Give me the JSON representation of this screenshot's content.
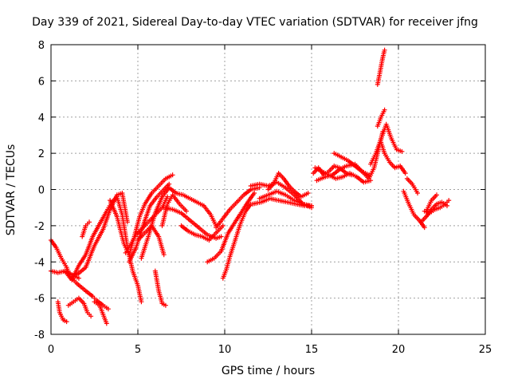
{
  "chart_data": {
    "type": "scatter",
    "title": "Day 339 of 2021, Sidereal Day-to-day VTEC variation (SDTVAR) for receiver jfng",
    "xlabel": "GPS time / hours",
    "ylabel": "SDTVAR / TECUs",
    "xlim": [
      0,
      25
    ],
    "ylim": [
      -8,
      8
    ],
    "xticks": [
      0,
      5,
      10,
      15,
      20,
      25
    ],
    "yticks": [
      -8,
      -6,
      -4,
      -2,
      0,
      2,
      4,
      6,
      8
    ],
    "xtick_labels": [
      "0",
      "5",
      "10",
      "15",
      "20",
      "25"
    ],
    "ytick_labels": [
      "-8",
      "-6",
      "-4",
      "-2",
      "0",
      "2",
      "4",
      "6",
      "8"
    ],
    "grid": true,
    "marker": "+",
    "marker_color": "#ff0000",
    "series": [
      {
        "name": "trace-1",
        "x": [
          0.0,
          0.3,
          0.6,
          0.9,
          1.1,
          1.5,
          2.0,
          2.4,
          2.6,
          3.0,
          3.3
        ],
        "y": [
          -2.8,
          -3.2,
          -3.8,
          -4.3,
          -4.8,
          -5.2,
          -5.6,
          -5.9,
          -6.1,
          -6.4,
          -6.6
        ]
      },
      {
        "name": "trace-2",
        "x": [
          0.0,
          0.4,
          0.8,
          1.2,
          1.6
        ],
        "y": [
          -4.5,
          -4.6,
          -4.5,
          -4.7,
          -4.9
        ]
      },
      {
        "name": "trace-3",
        "x": [
          0.4,
          0.5,
          0.7,
          0.9
        ],
        "y": [
          -6.2,
          -6.8,
          -7.2,
          -7.3
        ]
      },
      {
        "name": "trace-4",
        "x": [
          1.0,
          1.3,
          1.6,
          1.9,
          2.1,
          2.3
        ],
        "y": [
          -6.4,
          -6.2,
          -6.0,
          -6.3,
          -6.8,
          -7.0
        ]
      },
      {
        "name": "trace-5",
        "x": [
          2.5,
          2.8,
          3.0,
          3.2
        ],
        "y": [
          -6.2,
          -6.4,
          -6.9,
          -7.4
        ]
      },
      {
        "name": "trace-6",
        "x": [
          1.8,
          2.0,
          2.2
        ],
        "y": [
          -2.6,
          -2.0,
          -1.8
        ]
      },
      {
        "name": "trace-7",
        "x": [
          0.8,
          1.2,
          1.6,
          2.0,
          2.4,
          2.8,
          3.2,
          3.5,
          3.8,
          4.1,
          4.4,
          4.7,
          5.0,
          5.2
        ],
        "y": [
          -4.5,
          -5.0,
          -4.2,
          -3.6,
          -2.6,
          -1.9,
          -1.2,
          -0.7,
          -0.4,
          -1.4,
          -3.2,
          -4.5,
          -5.3,
          -6.2
        ]
      },
      {
        "name": "trace-8",
        "x": [
          1.5,
          2.0,
          2.5,
          3.0,
          3.4,
          3.8,
          4.1,
          4.4
        ],
        "y": [
          -4.7,
          -4.3,
          -3.1,
          -2.2,
          -1.1,
          -0.3,
          -0.2,
          -1.8
        ]
      },
      {
        "name": "trace-9",
        "x": [
          3.4,
          3.8,
          4.2,
          4.5,
          4.8,
          5.1,
          5.4,
          5.8,
          6.2,
          6.6,
          7.0
        ],
        "y": [
          -0.6,
          -1.5,
          -3.0,
          -3.6,
          -2.6,
          -1.5,
          -0.8,
          -0.2,
          0.2,
          0.6,
          0.8
        ]
      },
      {
        "name": "trace-10",
        "x": [
          4.3,
          4.6,
          4.9,
          5.2,
          5.6,
          6.0,
          6.4,
          6.7
        ],
        "y": [
          -3.5,
          -3.0,
          -2.5,
          -2.2,
          -1.8,
          -1.4,
          -1.0,
          -0.4
        ]
      },
      {
        "name": "trace-11",
        "x": [
          5.0,
          5.4,
          5.8,
          6.2,
          6.5
        ],
        "y": [
          -2.8,
          -2.4,
          -2.0,
          -2.6,
          -3.6
        ]
      },
      {
        "name": "trace-12",
        "x": [
          4.5,
          4.9,
          5.3,
          5.7,
          6.1,
          6.5,
          6.8
        ],
        "y": [
          -4.0,
          -3.2,
          -2.0,
          -0.9,
          -0.4,
          0.0,
          0.3
        ]
      },
      {
        "name": "trace-13",
        "x": [
          5.2,
          5.6,
          6.0,
          6.4,
          6.8,
          7.2,
          7.6,
          8.0,
          8.4,
          8.8,
          9.2,
          9.5
        ],
        "y": [
          -3.8,
          -2.6,
          -1.3,
          -0.4,
          0.1,
          -0.2,
          -0.3,
          -0.5,
          -0.7,
          -0.9,
          -1.4,
          -2.0
        ]
      },
      {
        "name": "trace-14",
        "x": [
          6.0,
          6.2,
          6.4,
          6.6
        ],
        "y": [
          -4.5,
          -5.6,
          -6.3,
          -6.4
        ]
      },
      {
        "name": "trace-15",
        "x": [
          6.4,
          6.7,
          7.0,
          7.4,
          7.8
        ],
        "y": [
          -2.0,
          -0.8,
          -0.3,
          -0.8,
          -1.2
        ]
      },
      {
        "name": "trace-16",
        "x": [
          6.5,
          7.0,
          7.5,
          8.0,
          8.5,
          9.0,
          9.5,
          9.8
        ],
        "y": [
          -1.0,
          -1.1,
          -1.3,
          -1.7,
          -2.1,
          -2.5,
          -2.7,
          -2.6
        ]
      },
      {
        "name": "trace-17",
        "x": [
          7.5,
          7.9,
          8.3,
          8.7,
          9.1,
          9.5,
          9.9
        ],
        "y": [
          -2.0,
          -2.3,
          -2.5,
          -2.6,
          -2.8,
          -2.4,
          -2.0
        ]
      },
      {
        "name": "trace-18",
        "x": [
          9.0,
          9.4,
          9.8,
          10.2,
          10.6,
          11.0,
          11.4,
          11.7
        ],
        "y": [
          -4.0,
          -3.8,
          -3.4,
          -2.4,
          -1.8,
          -1.2,
          -0.6,
          -0.2
        ]
      },
      {
        "name": "trace-19",
        "x": [
          9.9,
          10.1,
          10.3,
          10.6,
          10.9,
          11.2,
          11.5
        ],
        "y": [
          -4.9,
          -4.4,
          -3.7,
          -2.8,
          -1.9,
          -1.2,
          -0.8
        ]
      },
      {
        "name": "trace-20",
        "x": [
          9.5,
          9.9,
          10.3,
          10.7,
          11.1,
          11.5,
          12.0
        ],
        "y": [
          -2.1,
          -1.6,
          -1.1,
          -0.7,
          -0.3,
          0.0,
          0.1
        ]
      },
      {
        "name": "trace-21",
        "x": [
          11.5,
          12.0,
          12.5,
          13.0,
          13.5,
          14.0,
          14.5,
          15.0
        ],
        "y": [
          0.2,
          0.3,
          0.2,
          0.4,
          0.1,
          -0.3,
          -0.8,
          -0.9
        ]
      },
      {
        "name": "trace-22",
        "x": [
          12.0,
          12.5,
          13.0,
          13.5,
          14.0,
          14.5,
          15.0
        ],
        "y": [
          -0.5,
          -0.3,
          -0.1,
          -0.3,
          -0.6,
          -0.8,
          -1.0
        ]
      },
      {
        "name": "trace-23",
        "x": [
          11.6,
          12.1,
          12.6,
          13.1,
          13.6,
          14.1,
          14.6,
          15.0
        ],
        "y": [
          -0.8,
          -0.7,
          -0.5,
          -0.6,
          -0.7,
          -0.8,
          -0.9,
          -0.9
        ]
      },
      {
        "name": "trace-24",
        "x": [
          12.5,
          12.8,
          13.1,
          13.4,
          13.7,
          14.0,
          14.4,
          14.8
        ],
        "y": [
          0.0,
          0.3,
          0.9,
          0.6,
          0.2,
          -0.1,
          -0.4,
          -0.2
        ]
      },
      {
        "name": "trace-25",
        "x": [
          15.1,
          15.4,
          15.7,
          16.0,
          16.3,
          16.6,
          17.0,
          17.3
        ],
        "y": [
          0.9,
          1.2,
          0.8,
          1.0,
          1.3,
          1.2,
          0.9,
          0.8
        ]
      },
      {
        "name": "trace-26",
        "x": [
          15.2,
          15.6,
          16.0,
          16.4,
          16.8,
          17.2,
          17.6,
          18.0,
          18.4
        ],
        "y": [
          1.2,
          1.0,
          0.8,
          0.6,
          0.7,
          0.9,
          0.7,
          0.4,
          0.5
        ]
      },
      {
        "name": "trace-27",
        "x": [
          16.3,
          16.7,
          17.1,
          17.5,
          17.9,
          18.3
        ],
        "y": [
          2.0,
          1.8,
          1.6,
          1.3,
          1.0,
          0.8
        ]
      },
      {
        "name": "trace-28",
        "x": [
          15.3,
          15.8,
          16.2,
          16.6,
          17.0,
          17.5,
          17.9,
          18.3,
          18.6,
          18.9,
          19.1
        ],
        "y": [
          0.5,
          0.7,
          0.8,
          1.1,
          1.3,
          1.4,
          1.0,
          0.6,
          1.2,
          2.4,
          3.2
        ]
      },
      {
        "name": "trace-29",
        "x": [
          18.4,
          18.7,
          19.0,
          19.3,
          19.6,
          19.9,
          20.2
        ],
        "y": [
          1.4,
          2.0,
          2.8,
          3.6,
          2.8,
          2.2,
          2.1
        ]
      },
      {
        "name": "trace-30",
        "x": [
          18.8,
          19.0,
          19.2
        ],
        "y": [
          3.5,
          4.0,
          4.4
        ]
      },
      {
        "name": "trace-31",
        "x": [
          19.0,
          19.2,
          19.5,
          19.8,
          20.1,
          20.4
        ],
        "y": [
          2.6,
          2.0,
          1.5,
          1.2,
          1.3,
          0.9
        ]
      },
      {
        "name": "trace-32",
        "x": [
          18.8,
          18.9,
          19.0,
          19.1,
          19.2
        ],
        "y": [
          5.8,
          6.3,
          6.8,
          7.3,
          7.7
        ]
      },
      {
        "name": "trace-33",
        "x": [
          20.3,
          20.6,
          20.9,
          21.2,
          21.5
        ],
        "y": [
          -0.1,
          -0.8,
          -1.4,
          -1.7,
          -2.1
        ]
      },
      {
        "name": "trace-34",
        "x": [
          20.5,
          20.8,
          21.1
        ],
        "y": [
          0.6,
          0.3,
          -0.2
        ]
      },
      {
        "name": "trace-35",
        "x": [
          21.5,
          21.8,
          22.1,
          22.4,
          22.7,
          22.9
        ],
        "y": [
          -1.2,
          -1.3,
          -1.1,
          -1.0,
          -0.8,
          -0.6
        ]
      },
      {
        "name": "trace-36",
        "x": [
          21.3,
          21.6,
          21.9,
          22.2,
          22.5,
          22.8
        ],
        "y": [
          -1.8,
          -1.5,
          -1.1,
          -0.8,
          -0.7,
          -0.9
        ]
      },
      {
        "name": "trace-37",
        "x": [
          21.6,
          21.9,
          22.2
        ],
        "y": [
          -1.2,
          -0.6,
          -0.3
        ]
      }
    ]
  }
}
